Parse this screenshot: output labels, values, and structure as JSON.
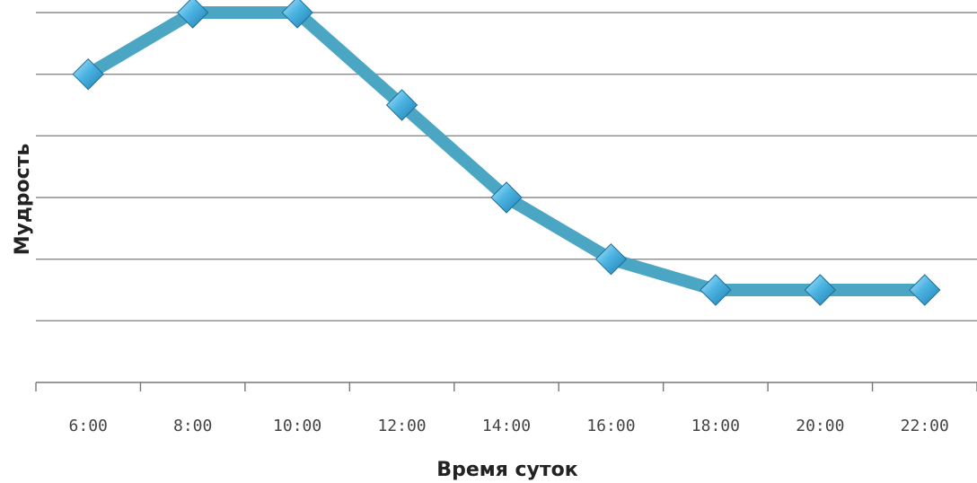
{
  "chart_data": {
    "type": "line",
    "categories": [
      "6:00",
      "8:00",
      "10:00",
      "12:00",
      "14:00",
      "16:00",
      "18:00",
      "20:00",
      "22:00"
    ],
    "series": [
      {
        "values": [
          5,
          6,
          6,
          4.5,
          3,
          2,
          1.5,
          1.5,
          1.5
        ]
      }
    ],
    "xlabel": "Время суток",
    "ylabel": "Мудрость",
    "ylim": [
      0,
      6
    ],
    "grid": true,
    "colors": {
      "line": "#4ba6c4",
      "marker": "#3aa0d8",
      "marker_light": "#8fd3f2",
      "grid": "#8a8a8a",
      "axis": "#777777"
    }
  }
}
